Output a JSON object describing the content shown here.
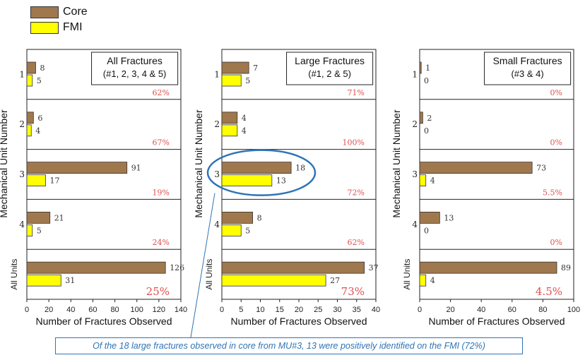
{
  "legend": {
    "items": [
      {
        "label": "Core",
        "color": "#a0784e"
      },
      {
        "label": "FMI",
        "color": "#ffff00"
      }
    ]
  },
  "colors": {
    "core": "#a0784e",
    "fmi": "#ffff00",
    "percent": "#e05050",
    "callout": "#2f74b5",
    "gridline": "#999999"
  },
  "caption": "Of the 18 large fractures observed in core from MU#3, 13 were positively identified on the FMI (72%)",
  "chart_data": [
    {
      "type": "bar",
      "orientation": "horizontal",
      "title_lines": [
        "All Fractures",
        "(#1, 2, 3, 4 & 5)"
      ],
      "xlabel": "Number of Fractures Observed",
      "ylabel": "Mechanical Unit Number",
      "categories": [
        "1",
        "2",
        "3",
        "4",
        "All Units"
      ],
      "series": [
        {
          "name": "Core",
          "values": [
            8,
            6,
            91,
            21,
            126
          ]
        },
        {
          "name": "FMI",
          "values": [
            5,
            4,
            17,
            5,
            31
          ]
        }
      ],
      "percent_labels": [
        "62%",
        "67%",
        "19%",
        "24%",
        "25%"
      ],
      "xlim": [
        0,
        140
      ],
      "xticks": [
        0,
        20,
        40,
        60,
        80,
        100,
        120,
        140
      ]
    },
    {
      "type": "bar",
      "orientation": "horizontal",
      "title_lines": [
        "Large Fractures",
        "(#1, 2 & 5)"
      ],
      "xlabel": "Number of Fractures Observed",
      "ylabel": "Mechanical Unit Number",
      "categories": [
        "1",
        "2",
        "3",
        "4",
        "All Units"
      ],
      "series": [
        {
          "name": "Core",
          "values": [
            7,
            4,
            18,
            8,
            37
          ]
        },
        {
          "name": "FMI",
          "values": [
            5,
            4,
            13,
            5,
            27
          ]
        }
      ],
      "percent_labels": [
        "71%",
        "100%",
        "72%",
        "62%",
        "73%"
      ],
      "xlim": [
        0,
        40
      ],
      "xticks": [
        0,
        5,
        10,
        15,
        20,
        25,
        30,
        35,
        40
      ]
    },
    {
      "type": "bar",
      "orientation": "horizontal",
      "title_lines": [
        "Small Fractures",
        "(#3 & 4)"
      ],
      "xlabel": "Number of Fractures Observed",
      "ylabel": "Mechanical Unit Number",
      "categories": [
        "1",
        "2",
        "3",
        "4",
        "All Units"
      ],
      "series": [
        {
          "name": "Core",
          "values": [
            1,
            2,
            73,
            13,
            89
          ]
        },
        {
          "name": "FMI",
          "values": [
            0,
            0,
            4,
            0,
            4
          ]
        }
      ],
      "percent_labels": [
        "0%",
        "0%",
        "5.5%",
        "0%",
        "4.5%"
      ],
      "xlim": [
        0,
        100
      ],
      "xticks": [
        0,
        20,
        40,
        60,
        80,
        100
      ]
    }
  ]
}
